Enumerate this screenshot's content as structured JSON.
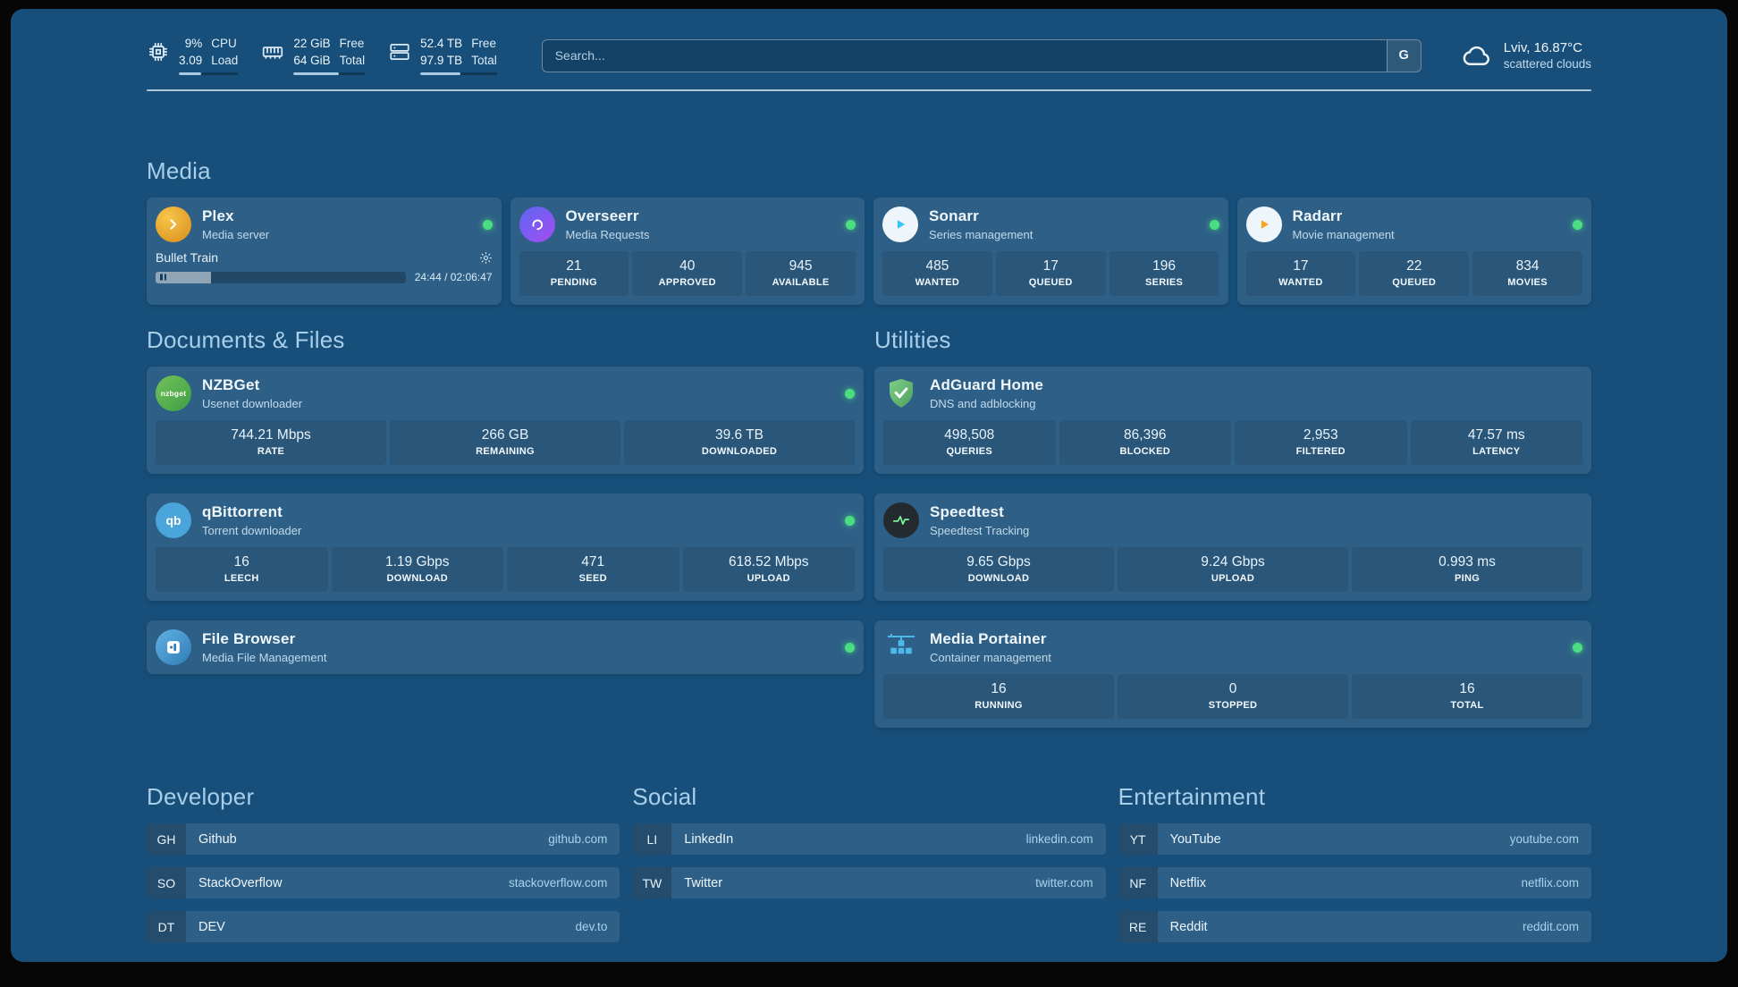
{
  "colors": {
    "background": "#174F7A",
    "status_online": "#4ade80",
    "heading": "#a8cee9",
    "plex_brand": "#e5a00d",
    "overseerr_brand": "#7b5bf5",
    "sonarr_brand": "#35c5f4",
    "radarr_brand": "#f5a623",
    "nzbget_brand": "#54b54a",
    "adguard_brand": "#67b279",
    "speedtest_wave": "#7ef29a",
    "portainer_brand": "#4fb8ea"
  },
  "icons": {
    "qbittorrent_text": "qb",
    "nzbget_text": "nzbget"
  },
  "header": {
    "cpu": {
      "values": [
        "9%",
        "3.09"
      ],
      "labels": [
        "CPU",
        "Load"
      ],
      "progress": 38
    },
    "memory": {
      "values": [
        "22 GiB",
        "64 GiB"
      ],
      "labels": [
        "Free",
        "Total"
      ],
      "progress": 63
    },
    "disk": {
      "values": [
        "52.4 TB",
        "97.9 TB"
      ],
      "labels": [
        "Free",
        "Total"
      ],
      "progress": 52
    },
    "search": {
      "placeholder": "Search...",
      "provider": "G"
    },
    "weather": {
      "location": "Lviv, 16.87°C",
      "condition": "scattered clouds"
    }
  },
  "sections": {
    "media": {
      "title": "Media",
      "plex": {
        "name": "Plex",
        "desc": "Media server",
        "status": "online",
        "player": {
          "title": "Bullet Train",
          "time": "24:44 / 02:06:47",
          "progress": 22
        }
      },
      "overseerr": {
        "name": "Overseerr",
        "desc": "Media Requests",
        "status": "online",
        "stats": [
          {
            "value": "21",
            "label": "PENDING"
          },
          {
            "value": "40",
            "label": "APPROVED"
          },
          {
            "value": "945",
            "label": "AVAILABLE"
          }
        ]
      },
      "sonarr": {
        "name": "Sonarr",
        "desc": "Series management",
        "status": "online",
        "stats": [
          {
            "value": "485",
            "label": "WANTED"
          },
          {
            "value": "17",
            "label": "QUEUED"
          },
          {
            "value": "196",
            "label": "SERIES"
          }
        ]
      },
      "radarr": {
        "name": "Radarr",
        "desc": "Movie management",
        "status": "online",
        "stats": [
          {
            "value": "17",
            "label": "WANTED"
          },
          {
            "value": "22",
            "label": "QUEUED"
          },
          {
            "value": "834",
            "label": "MOVIES"
          }
        ]
      }
    },
    "documents": {
      "title": "Documents & Files",
      "nzbget": {
        "name": "NZBGet",
        "desc": "Usenet downloader",
        "status": "online",
        "stats": [
          {
            "value": "744.21 Mbps",
            "label": "RATE"
          },
          {
            "value": "266 GB",
            "label": "REMAINING"
          },
          {
            "value": "39.6 TB",
            "label": "DOWNLOADED"
          }
        ]
      },
      "qbittorrent": {
        "name": "qBittorrent",
        "desc": "Torrent downloader",
        "status": "online",
        "stats": [
          {
            "value": "16",
            "label": "LEECH"
          },
          {
            "value": "1.19 Gbps",
            "label": "DOWNLOAD"
          },
          {
            "value": "471",
            "label": "SEED"
          },
          {
            "value": "618.52 Mbps",
            "label": "UPLOAD"
          }
        ]
      },
      "filebrowser": {
        "name": "File Browser",
        "desc": "Media File Management",
        "status": "online"
      }
    },
    "utilities": {
      "title": "Utilities",
      "adguard": {
        "name": "AdGuard Home",
        "desc": "DNS and adblocking",
        "stats": [
          {
            "value": "498,508",
            "label": "QUERIES"
          },
          {
            "value": "86,396",
            "label": "BLOCKED"
          },
          {
            "value": "2,953",
            "label": "FILTERED"
          },
          {
            "value": "47.57 ms",
            "label": "LATENCY"
          }
        ]
      },
      "speedtest": {
        "name": "Speedtest",
        "desc": "Speedtest Tracking",
        "stats": [
          {
            "value": "9.65 Gbps",
            "label": "DOWNLOAD"
          },
          {
            "value": "9.24 Gbps",
            "label": "UPLOAD"
          },
          {
            "value": "0.993 ms",
            "label": "PING"
          }
        ]
      },
      "portainer": {
        "name": "Media Portainer",
        "desc": "Container management",
        "status": "online",
        "stats": [
          {
            "value": "16",
            "label": "RUNNING"
          },
          {
            "value": "0",
            "label": "STOPPED"
          },
          {
            "value": "16",
            "label": "TOTAL"
          }
        ]
      }
    }
  },
  "bookmarks": {
    "developer": {
      "title": "Developer",
      "items": [
        {
          "abbr": "GH",
          "name": "Github",
          "url": "github.com"
        },
        {
          "abbr": "SO",
          "name": "StackOverflow",
          "url": "stackoverflow.com"
        },
        {
          "abbr": "DT",
          "name": "DEV",
          "url": "dev.to"
        }
      ]
    },
    "social": {
      "title": "Social",
      "items": [
        {
          "abbr": "LI",
          "name": "LinkedIn",
          "url": "linkedin.com"
        },
        {
          "abbr": "TW",
          "name": "Twitter",
          "url": "twitter.com"
        }
      ]
    },
    "entertainment": {
      "title": "Entertainment",
      "items": [
        {
          "abbr": "YT",
          "name": "YouTube",
          "url": "youtube.com"
        },
        {
          "abbr": "NF",
          "name": "Netflix",
          "url": "netflix.com"
        },
        {
          "abbr": "RE",
          "name": "Reddit",
          "url": "reddit.com"
        }
      ]
    }
  }
}
